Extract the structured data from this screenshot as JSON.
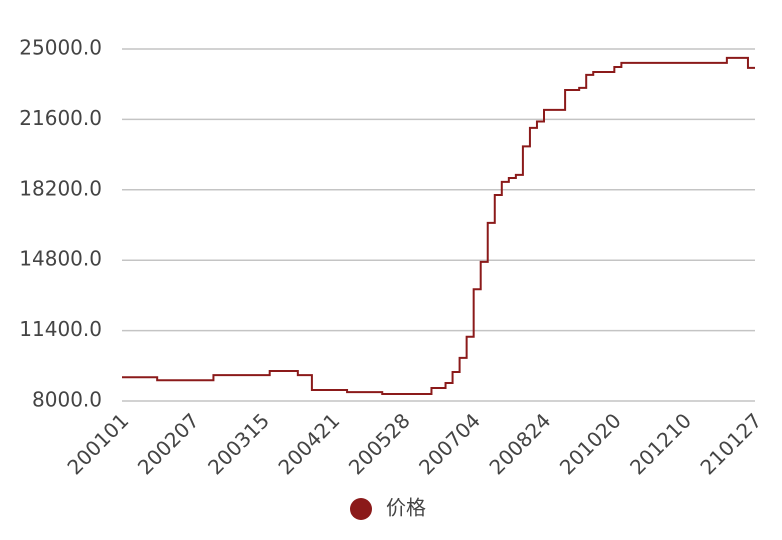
{
  "chart_data": {
    "type": "line",
    "categories": [
      "200101",
      null,
      null,
      null,
      null,
      null,
      null,
      null,
      null,
      null,
      "200207",
      null,
      null,
      null,
      null,
      null,
      null,
      null,
      null,
      null,
      "200315",
      null,
      null,
      null,
      null,
      null,
      null,
      null,
      null,
      null,
      "200421",
      null,
      null,
      null,
      null,
      null,
      null,
      null,
      null,
      null,
      "200528",
      null,
      null,
      null,
      null,
      null,
      null,
      null,
      null,
      null,
      "200704",
      null,
      null,
      null,
      null,
      null,
      null,
      null,
      null,
      null,
      "200824",
      null,
      null,
      null,
      null,
      null,
      null,
      null,
      null,
      null,
      "201020",
      null,
      null,
      null,
      null,
      null,
      null,
      null,
      null,
      null,
      "201210",
      null,
      null,
      null,
      null,
      null,
      null,
      null,
      null,
      null,
      "210127"
    ],
    "series": [
      {
        "name": "价格",
        "color": "#8b1a1a",
        "values": [
          9150,
          9150,
          9150,
          9150,
          9150,
          9000,
          9000,
          9000,
          9000,
          9000,
          9000,
          9000,
          9000,
          9250,
          9250,
          9250,
          9250,
          9250,
          9250,
          9250,
          9250,
          9450,
          9450,
          9450,
          9450,
          9250,
          9250,
          8530,
          8530,
          8530,
          8530,
          8530,
          8430,
          8430,
          8430,
          8430,
          8430,
          8340,
          8340,
          8340,
          8340,
          8340,
          8340,
          8340,
          8630,
          8630,
          8870,
          9400,
          10080,
          11100,
          13400,
          14720,
          16600,
          17950,
          18580,
          18770,
          18920,
          20300,
          21190,
          21500,
          22060,
          22060,
          22060,
          23020,
          23020,
          23120,
          23750,
          23890,
          23890,
          23890,
          24130,
          24330,
          24330,
          24330,
          24330,
          24330,
          24330,
          24330,
          24330,
          24330,
          24330,
          24330,
          24330,
          24330,
          24330,
          24330,
          24570,
          24570,
          24570,
          24090,
          24090
        ]
      }
    ],
    "ylim": [
      8000,
      25000
    ],
    "yticks": [
      {
        "value": 8000,
        "label": "8000.0"
      },
      {
        "value": 11400,
        "label": "11400.0"
      },
      {
        "value": 14800,
        "label": "14800.0"
      },
      {
        "value": 18200,
        "label": "18200.0"
      },
      {
        "value": 21600,
        "label": "21600.0"
      },
      {
        "value": 25000,
        "label": "25000.0"
      }
    ],
    "grid": true,
    "legend": "bottom"
  }
}
